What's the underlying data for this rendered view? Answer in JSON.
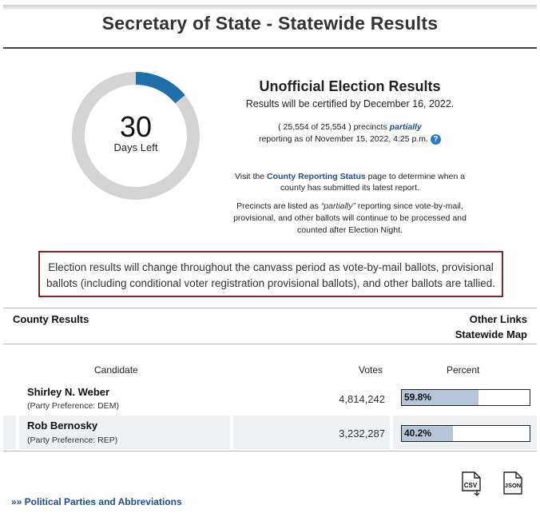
{
  "page": {
    "title": "Secretary of State - Statewide Results"
  },
  "countdown": {
    "days": "30",
    "label": "Days Left",
    "progress_fraction": 0.14,
    "track_color": "#d4d4d4",
    "fill_color": "#1f6fa8"
  },
  "summary": {
    "heading": "Unofficial Election Results",
    "certified": "Results will be certified by December 16, 2022.",
    "precincts_prefix": "( 25,554 of 25,554 ) precincts ",
    "precincts_emph": "partially",
    "precincts_reporting": "reporting as of November 15, 2022, 4:25 p.m.",
    "help_icon": "help-circle-icon",
    "visit_pre": "Visit the ",
    "visit_link": "County Reporting Status",
    "visit_post": " page to determine when a county has submitted its latest report.",
    "partial_pre": "Precincts are listed as ",
    "partial_emph": "“partially”",
    "partial_post": " reporting since vote-by-mail, provisional, and other ballots will continue to be processed and counted after Election Night."
  },
  "notice": {
    "text": "Election results will change throughout the canvass period as vote-by-mail ballots, provisional ballots (including conditional voter registration provisional ballots), and other ballots are tallied."
  },
  "links": {
    "county_results": "County Results",
    "other_links": "Other Links",
    "statewide_map": "Statewide Map",
    "parties": "»» Political Parties and Abbreviations"
  },
  "table": {
    "headers": {
      "candidate": "Candidate",
      "votes": "Votes",
      "percent": "Percent"
    },
    "rows": [
      {
        "name": "Shirley N. Weber",
        "party": "(Party Preference: DEM)",
        "votes": "4,814,242",
        "percent_label": "59.8%",
        "percent": 59.8
      },
      {
        "name": "Rob Bernosky",
        "party": "(Party Preference: REP)",
        "votes": "3,232,287",
        "percent_label": "40.2%",
        "percent": 40.2
      }
    ]
  },
  "downloads": {
    "csv_label": "CSV",
    "json_label": "JSON"
  }
}
